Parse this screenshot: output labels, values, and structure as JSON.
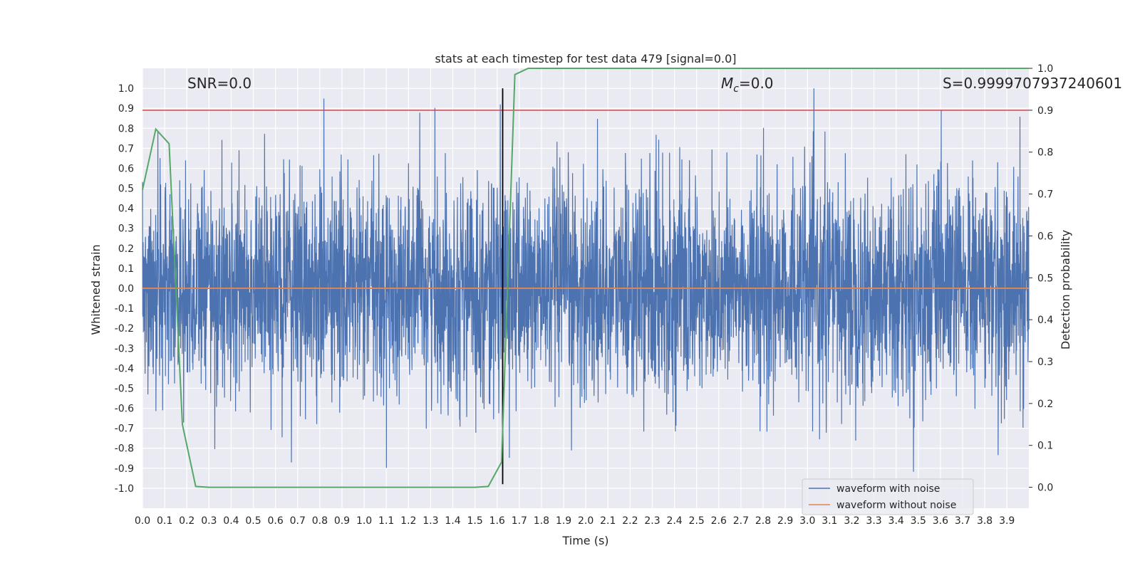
{
  "chart_data": {
    "type": "line",
    "title": "stats at each timestep for test data 479 [signal=0.0]",
    "xlabel": "Time (s)",
    "ylabel": "Whitened strain",
    "y2label": "Detection probability",
    "xlim": [
      0.0,
      3.999
    ],
    "ylim": [
      -1.1,
      1.1
    ],
    "y2lim": [
      -0.05,
      1.0
    ],
    "grid": true,
    "x_ticks": [
      "0.0",
      "0.1",
      "0.2",
      "0.3",
      "0.4",
      "0.5",
      "0.6",
      "0.7",
      "0.8",
      "0.9",
      "1.0",
      "1.1",
      "1.2",
      "1.3",
      "1.4",
      "1.5",
      "1.6",
      "1.7",
      "1.8",
      "1.9",
      "2.0",
      "2.1",
      "2.2",
      "2.3",
      "2.4",
      "2.5",
      "2.6",
      "2.7",
      "2.8",
      "2.9",
      "3.0",
      "3.1",
      "3.2",
      "3.3",
      "3.4",
      "3.5",
      "3.6",
      "3.7",
      "3.8",
      "3.9"
    ],
    "y_ticks": [
      "1.0",
      "0.9",
      "0.8",
      "0.7",
      "0.6",
      "0.5",
      "0.4",
      "0.3",
      "0.2",
      "0.1",
      "0.0",
      "-0.1",
      "-0.2",
      "-0.3",
      "-0.4",
      "-0.5",
      "-0.6",
      "-0.7",
      "-0.8",
      "-0.9",
      "-1.0"
    ],
    "y2_ticks": [
      "1.0",
      "0.9",
      "0.8",
      "0.7",
      "0.6",
      "0.5",
      "0.4",
      "0.3",
      "0.2",
      "0.1",
      "0.0"
    ],
    "annotations": {
      "snr": "SNR=0.0",
      "mc": "=0.0",
      "mc_symbol": "M",
      "mc_sub": "c",
      "s": "S=0.9999707937240601"
    },
    "series": [
      {
        "name": "waveform with noise",
        "color": "#4c72b0",
        "axis": "left",
        "kind": "noise",
        "y_peak_max": 1.0,
        "y_peak_min": -1.0
      },
      {
        "name": "waveform without noise",
        "color": "#dd8452",
        "axis": "left",
        "x": [
          0.0,
          3.999
        ],
        "y": [
          0.0,
          0.0
        ]
      },
      {
        "name": "detection probability",
        "color": "#55a868",
        "axis": "right",
        "x": [
          0.0,
          0.06,
          0.12,
          0.18,
          0.24,
          0.3,
          0.36,
          1.5,
          1.56,
          1.62,
          1.68,
          1.74,
          3.999
        ],
        "y": [
          0.71,
          0.855,
          0.82,
          0.15,
          0.002,
          0.0,
          0.0,
          0.0,
          0.002,
          0.06,
          0.985,
          1.0,
          1.0
        ]
      }
    ],
    "hlines": [
      {
        "y": 0.9,
        "axis": "right",
        "color": "#c44e52"
      }
    ],
    "vlines": [
      {
        "x": 1.625,
        "ymin": -0.98,
        "ymax": 1.0,
        "color": "#000000"
      }
    ],
    "legend": {
      "location": "lower-right",
      "entries": [
        {
          "label": "waveform with noise",
          "color": "#4c72b0"
        },
        {
          "label": "waveform without noise",
          "color": "#dd8452"
        }
      ]
    },
    "colors": {
      "plot_background": "#eaeaf2",
      "grid": "#ffffff"
    }
  }
}
